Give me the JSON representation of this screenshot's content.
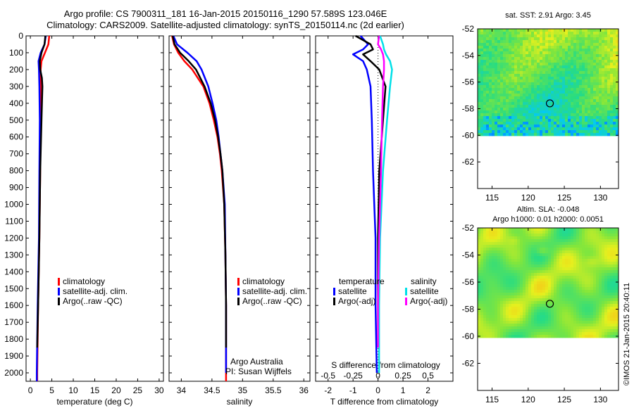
{
  "title_line1": "Argo profile: CS 7900311_181 16-Jan-2015 20150116_1290 57.589S 123.046E",
  "title_line2": "Climatology: CARS2009. Satellite-adjusted climatology: synTS_20150114.nc (2d earlier)",
  "colors": {
    "climatology": "#ff0000",
    "satellite": "#0000ff",
    "argo": "#000000",
    "satellite_s": "#00e0e8",
    "argo_s": "#ff00ff"
  },
  "depth_axis": {
    "ticks": [
      0,
      100,
      200,
      300,
      400,
      500,
      600,
      700,
      800,
      900,
      1000,
      1100,
      1200,
      1300,
      1400,
      1500,
      1600,
      1700,
      1800,
      1900,
      2000
    ],
    "ylim": [
      0,
      2050
    ]
  },
  "legend_items": [
    "climatology",
    "satellite-adj. clim.",
    "Argo(..raw -QC)"
  ],
  "diff_legend": {
    "temp_title": "temperature",
    "sal_title": "salinity",
    "satellite": "satellite",
    "argo": "Argo(-adj)"
  },
  "credits": {
    "line1": "Argo Australia",
    "line2": "PI: Susan Wijffels"
  },
  "map_sst_title": "sat. SST: 2.91 Argo: 3.45",
  "map_sla_title1": "Altim. SLA: -0.048",
  "map_sla_title2": "Argo h1000: 0.01 h2000: 0.0051",
  "imos_stamp": "©IMOS 21-Jan-2015 20:40:11",
  "chart_data": [
    {
      "type": "line",
      "xlabel": "temperature (deg C)",
      "ylabel": "",
      "xlim": [
        -1,
        31
      ],
      "ylim": [
        0,
        2050
      ],
      "xticks": [
        0,
        5,
        10,
        15,
        20,
        25,
        30
      ],
      "series": [
        {
          "name": "climatology",
          "depth": [
            0,
            50,
            100,
            150,
            200,
            300,
            500,
            800,
            1200,
            1600,
            2000,
            2050
          ],
          "values": [
            4.4,
            4.2,
            3.4,
            2.6,
            2.4,
            2.4,
            2.4,
            2.3,
            2.1,
            1.8,
            1.6,
            1.6
          ]
        },
        {
          "name": "satellite-adj. clim.",
          "depth": [
            0,
            50,
            100,
            150,
            200,
            300,
            500,
            800,
            1200,
            1600,
            2000,
            2050
          ],
          "values": [
            3.6,
            3.3,
            2.4,
            1.9,
            2.0,
            2.1,
            2.2,
            2.1,
            2.0,
            1.7,
            1.5,
            1.5
          ]
        },
        {
          "name": "Argo(..raw -QC)",
          "depth": [
            0,
            50,
            100,
            150,
            200,
            250,
            300,
            500,
            800,
            1200,
            1600,
            1850
          ],
          "values": [
            3.5,
            3.3,
            2.6,
            2.2,
            2.3,
            2.7,
            2.8,
            2.6,
            2.3,
            2.1,
            1.8,
            1.6
          ]
        }
      ]
    },
    {
      "type": "line",
      "xlabel": "salinity",
      "ylabel": "",
      "xlim": [
        33.8,
        36.1
      ],
      "ylim": [
        0,
        2050
      ],
      "xticks": [
        34,
        34.5,
        35,
        35.5,
        36
      ],
      "xtick_labels": [
        "34",
        "34.5",
        "35",
        "35.5",
        "36"
      ],
      "series": [
        {
          "name": "climatology",
          "depth": [
            0,
            50,
            100,
            150,
            200,
            300,
            400,
            500,
            600,
            700,
            800,
            1000,
            1300,
            1600,
            2050
          ],
          "values": [
            33.85,
            33.88,
            33.95,
            34.05,
            34.18,
            34.36,
            34.46,
            34.53,
            34.59,
            34.63,
            34.66,
            34.7,
            34.72,
            34.73,
            34.73
          ]
        },
        {
          "name": "satellite-adj. clim.",
          "depth": [
            0,
            50,
            100,
            150,
            200,
            300,
            400,
            500,
            600,
            700,
            800,
            1000,
            1300,
            1600,
            2000
          ],
          "values": [
            33.87,
            33.93,
            34.1,
            34.25,
            34.33,
            34.44,
            34.51,
            34.57,
            34.61,
            34.64,
            34.67,
            34.71,
            34.72,
            34.73,
            34.73
          ]
        },
        {
          "name": "Argo(..raw -QC)",
          "depth": [
            0,
            50,
            100,
            150,
            200,
            300,
            400,
            500,
            600,
            700,
            800,
            1000,
            1300,
            1600,
            1850
          ],
          "values": [
            33.86,
            33.89,
            33.98,
            34.12,
            34.24,
            34.38,
            34.48,
            34.55,
            34.6,
            34.64,
            34.67,
            34.7,
            34.72,
            34.73,
            34.73
          ]
        }
      ]
    },
    {
      "type": "line",
      "xlabel": "T difference from climatology",
      "top_label": "S difference from climatology",
      "ylabel": "",
      "xlim": [
        -2.5,
        3
      ],
      "ylim": [
        0,
        2050
      ],
      "xticks": [
        -2,
        -1,
        0,
        1,
        2
      ],
      "top_xticks": [
        -0.5,
        -0.25,
        0,
        0.25,
        0.5
      ],
      "top_xtick_labels": [
        "-0.5",
        "-0.25",
        "0",
        "0.25",
        "0.5"
      ],
      "series": [
        {
          "name": "temperature satellite",
          "depth": [
            0,
            50,
            80,
            110,
            150,
            200,
            300,
            500,
            800,
            1200,
            1600,
            2000
          ],
          "values": [
            -0.7,
            -0.4,
            -0.6,
            -1.0,
            -0.6,
            -0.45,
            -0.3,
            -0.25,
            -0.2,
            -0.1,
            -0.1,
            -0.05
          ]
        },
        {
          "name": "temperature Argo(-adj)",
          "depth": [
            0,
            50,
            80,
            110,
            150,
            200,
            300,
            500,
            800,
            1200,
            1600,
            1850
          ],
          "values": [
            -0.9,
            -0.3,
            -0.2,
            -0.6,
            -0.3,
            0.05,
            0.3,
            0.2,
            0.05,
            0.0,
            0.0,
            0.0
          ]
        },
        {
          "name": "salinity satellite",
          "depth": [
            0,
            50,
            80,
            110,
            150,
            200,
            300,
            500,
            800,
            1200,
            1600,
            2000
          ],
          "values": [
            0.02,
            0.05,
            0.06,
            0.08,
            0.12,
            0.14,
            0.12,
            0.09,
            0.05,
            0.02,
            0.01,
            0.01
          ]
        },
        {
          "name": "salinity Argo(-adj)",
          "depth": [
            0,
            50,
            80,
            110,
            150,
            200,
            300,
            500,
            800,
            1200,
            1600,
            1850
          ],
          "values": [
            0.01,
            0.0,
            0.03,
            0.05,
            0.06,
            0.06,
            0.05,
            0.04,
            0.03,
            0.01,
            0.0,
            0.0
          ]
        }
      ]
    },
    {
      "type": "heatmap",
      "title": "sat. SST: 2.91 Argo: 3.45",
      "xlim": [
        113,
        132.5
      ],
      "ylim": [
        -64,
        -52
      ],
      "xticks": [
        115,
        120,
        125,
        130
      ],
      "yticks": [
        -52,
        -54,
        -56,
        -58,
        -60,
        -62
      ],
      "marker": {
        "lon": 123.0,
        "lat": -57.6
      }
    },
    {
      "type": "heatmap",
      "title": "Altim. SLA: -0.048",
      "subtitle": "Argo h1000: 0.01 h2000: 0.0051",
      "xlim": [
        113,
        132.5
      ],
      "ylim": [
        -64,
        -52
      ],
      "xticks": [
        115,
        120,
        125,
        130
      ],
      "yticks": [
        -52,
        -54,
        -56,
        -58,
        -60,
        -62
      ],
      "marker": {
        "lon": 123.0,
        "lat": -57.6
      }
    }
  ]
}
